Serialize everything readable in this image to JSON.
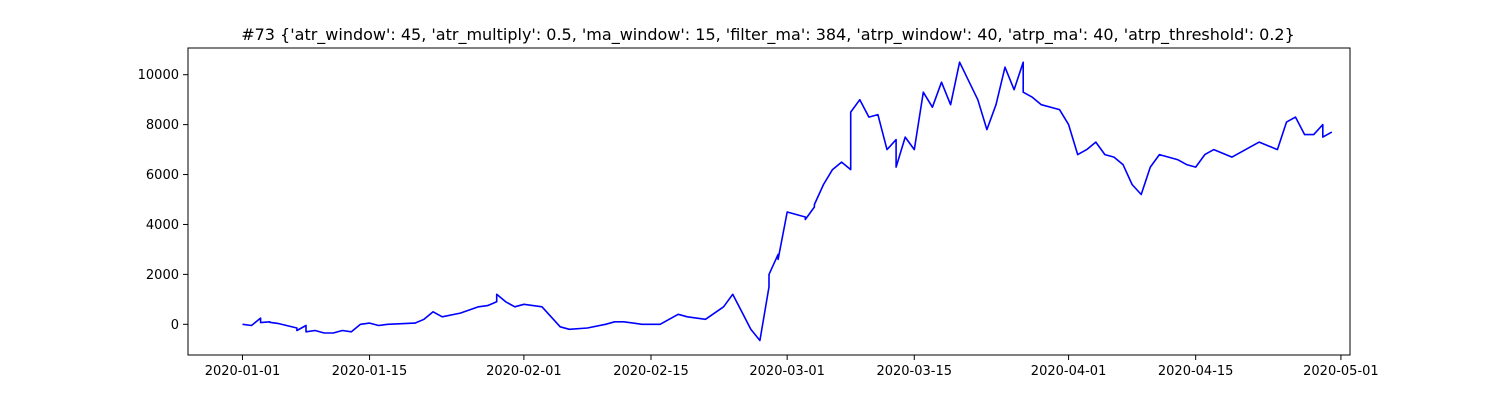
{
  "chart_data": {
    "type": "line",
    "title": "#73 {'atr_window': 45, 'atr_multiply': 0.5, 'ma_window': 15, 'filter_ma': 384, 'atrp_window': 40, 'atrp_ma': 40, 'atrp_threshold': 0.2}",
    "xlabel": "",
    "ylabel": "",
    "grid": false,
    "legend": "none",
    "series_color": "#0000ff",
    "x_range": [
      "2019-12-26",
      "2020-05-02"
    ],
    "y_range": [
      -1230,
      11070
    ],
    "x_ticks": [
      "2020-01-01",
      "2020-01-15",
      "2020-02-01",
      "2020-02-15",
      "2020-03-01",
      "2020-03-15",
      "2020-04-01",
      "2020-04-15",
      "2020-05-01"
    ],
    "y_ticks": [
      0,
      2000,
      4000,
      6000,
      8000,
      10000
    ],
    "series": [
      {
        "x": [
          "2020-01-01",
          "2020-01-02",
          "2020-01-03",
          "2020-01-03",
          "2020-01-04",
          "2020-01-04",
          "2020-01-05",
          "2020-01-07",
          "2020-01-07",
          "2020-01-08",
          "2020-01-08",
          "2020-01-09",
          "2020-01-10",
          "2020-01-11",
          "2020-01-12",
          "2020-01-13",
          "2020-01-14",
          "2020-01-15",
          "2020-01-16",
          "2020-01-17",
          "2020-01-20",
          "2020-01-21",
          "2020-01-22",
          "2020-01-23",
          "2020-01-25",
          "2020-01-27",
          "2020-01-28",
          "2020-01-29",
          "2020-01-29",
          "2020-01-30",
          "2020-01-31",
          "2020-02-01",
          "2020-02-03",
          "2020-02-04",
          "2020-02-05",
          "2020-02-06",
          "2020-02-08",
          "2020-02-10",
          "2020-02-11",
          "2020-02-12",
          "2020-02-14",
          "2020-02-16",
          "2020-02-18",
          "2020-02-19",
          "2020-02-21",
          "2020-02-23",
          "2020-02-24",
          "2020-02-25",
          "2020-02-26",
          "2020-02-27",
          "2020-02-28",
          "2020-02-28",
          "2020-02-29",
          "2020-02-29",
          "2020-03-01",
          "2020-03-03",
          "2020-03-03",
          "2020-03-04",
          "2020-03-04",
          "2020-03-05",
          "2020-03-06",
          "2020-03-07",
          "2020-03-08",
          "2020-03-08",
          "2020-03-09",
          "2020-03-10",
          "2020-03-11",
          "2020-03-12",
          "2020-03-13",
          "2020-03-13",
          "2020-03-14",
          "2020-03-15",
          "2020-03-16",
          "2020-03-17",
          "2020-03-18",
          "2020-03-19",
          "2020-03-20",
          "2020-03-22",
          "2020-03-23",
          "2020-03-24",
          "2020-03-25",
          "2020-03-26",
          "2020-03-27",
          "2020-03-27",
          "2020-03-28",
          "2020-03-29",
          "2020-03-31",
          "2020-04-01",
          "2020-04-02",
          "2020-04-03",
          "2020-04-04",
          "2020-04-05",
          "2020-04-06",
          "2020-04-07",
          "2020-04-08",
          "2020-04-09",
          "2020-04-10",
          "2020-04-11",
          "2020-04-13",
          "2020-04-14",
          "2020-04-15",
          "2020-04-16",
          "2020-04-17",
          "2020-04-19",
          "2020-04-20",
          "2020-04-21",
          "2020-04-22",
          "2020-04-24",
          "2020-04-25",
          "2020-04-26",
          "2020-04-27",
          "2020-04-28",
          "2020-04-29",
          "2020-04-29",
          "2020-04-30"
        ],
        "values": [
          0,
          -50,
          250,
          70,
          100,
          80,
          30,
          -150,
          -250,
          -50,
          -300,
          -250,
          -350,
          -350,
          -250,
          -300,
          0,
          50,
          -50,
          0,
          50,
          200,
          500,
          300,
          450,
          700,
          750,
          900,
          1200,
          900,
          700,
          800,
          700,
          300,
          -100,
          -200,
          -150,
          0,
          100,
          100,
          0,
          0,
          400,
          300,
          200,
          700,
          1200,
          500,
          -200,
          -650,
          1500,
          2000,
          2800,
          2600,
          4500,
          4300,
          4200,
          4700,
          4800,
          5600,
          6200,
          6500,
          6200,
          8500,
          9000,
          8300,
          8400,
          7000,
          7400,
          6300,
          7500,
          7000,
          9300,
          8700,
          9700,
          8800,
          10500,
          9000,
          7800,
          8800,
          10300,
          9400,
          10500,
          9300,
          9100,
          8800,
          8600,
          8000,
          6800,
          7000,
          7300,
          6800,
          6700,
          6400,
          5600,
          5200,
          6300,
          6800,
          6600,
          6400,
          6300,
          6800,
          7000,
          6700,
          6900,
          7100,
          7300,
          7000,
          8100,
          8300,
          7600,
          7600,
          8000,
          7500,
          7700
        ]
      }
    ]
  }
}
